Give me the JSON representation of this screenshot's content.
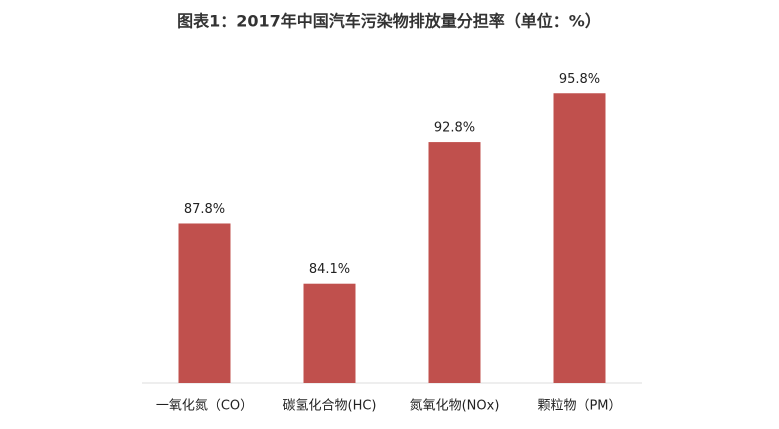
{
  "chart_data": {
    "type": "bar",
    "title": "图表1：2017年中国汽车污染物排放量分担率（单位：%）",
    "categories": [
      "一氧化氮（CO）",
      "碳氢化合物(HC)",
      "氮氧化物(NOx)",
      "颗粒物（PM）"
    ],
    "values": [
      87.8,
      84.1,
      92.8,
      95.8
    ],
    "value_labels": [
      "87.8%",
      "84.1%",
      "92.8%",
      "95.8%"
    ],
    "color": "#c0504d",
    "ylim": [
      78,
      96
    ]
  }
}
